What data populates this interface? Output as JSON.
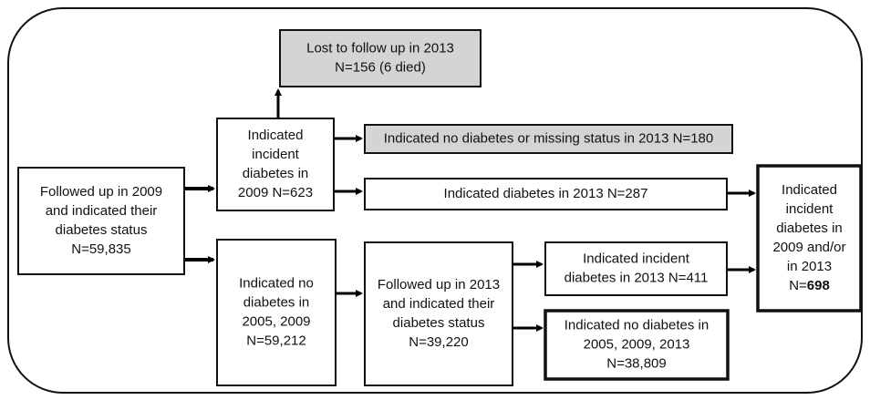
{
  "nodes": [
    {
      "lines": [
        "Lost to follow up in 2013",
        "N=156 (6 died)"
      ]
    },
    {
      "lines": [
        "Indicated",
        "incident",
        "diabetes in",
        "2009 N=623"
      ]
    },
    {
      "lines": [
        "Indicated no diabetes or missing status in 2013 N=180"
      ]
    },
    {
      "lines": [
        "Indicated diabetes in 2013 N=287"
      ]
    },
    {
      "lines": [
        "Followed up in 2009",
        "and indicated their",
        "diabetes status",
        "N=59,835"
      ]
    },
    {
      "lines": [
        "Indicated no",
        "diabetes in",
        "2005, 2009",
        "N=59,212"
      ]
    },
    {
      "lines": [
        "Followed up in 2013",
        "and indicated their",
        "diabetes status",
        "N=39,220"
      ]
    },
    {
      "lines": [
        "Indicated incident",
        "diabetes in 2013 N=411"
      ]
    },
    {
      "lines": [
        "Indicated no diabetes in",
        "2005, 2009, 2013",
        "N=38,809"
      ]
    },
    {
      "lines": [
        "Indicated",
        "incident",
        "diabetes in",
        "2009 and/or",
        "in 2013"
      ],
      "count_label": "N=",
      "count": "698"
    }
  ]
}
